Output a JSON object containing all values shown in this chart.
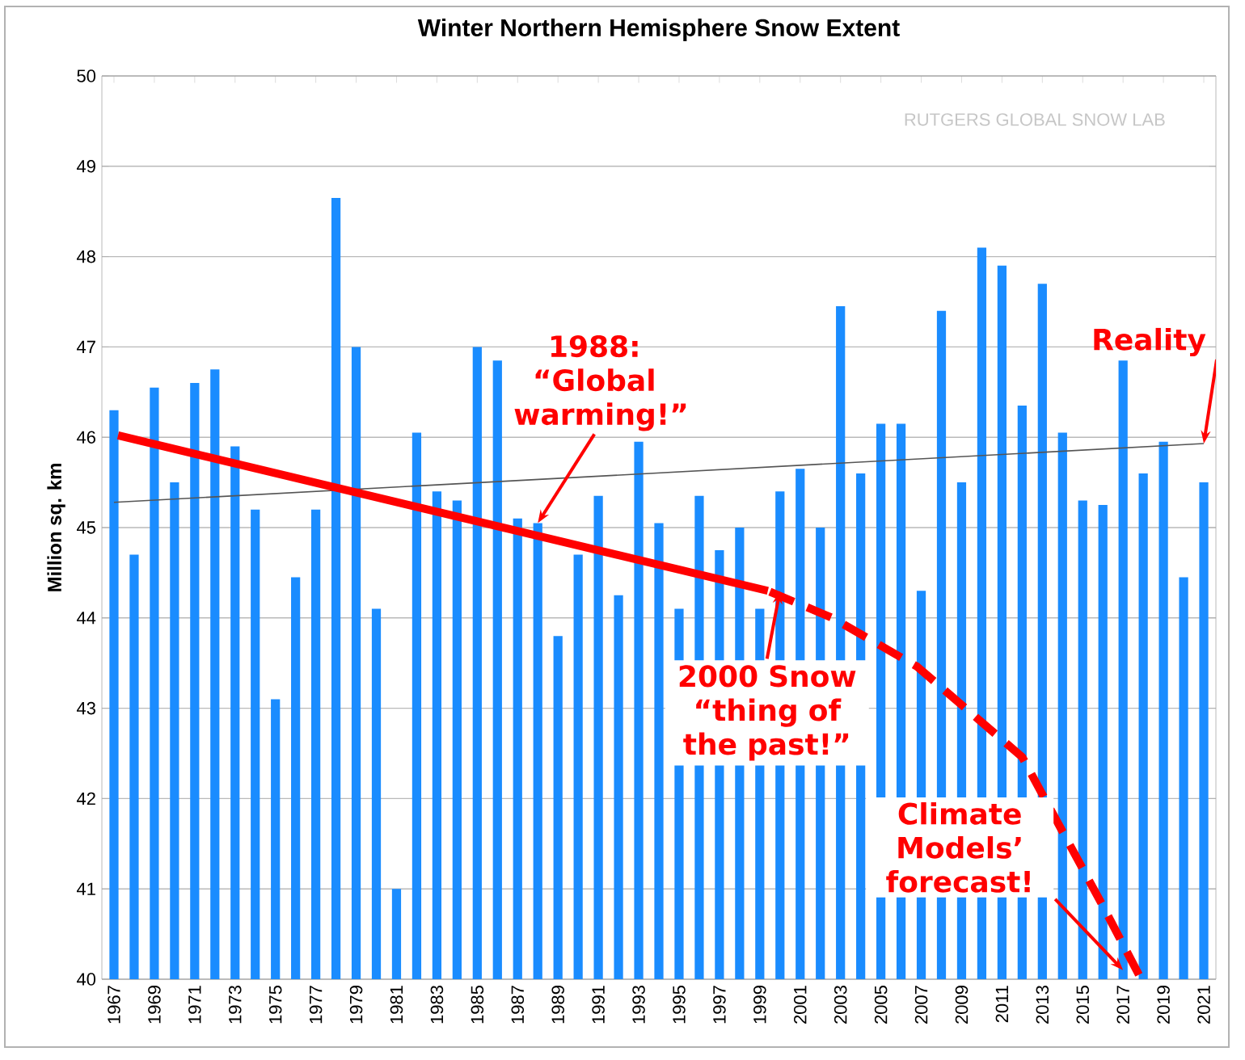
{
  "chart_data": {
    "type": "bar",
    "title": "Winter Northern Hemisphere Snow Extent",
    "ylabel": "Million sq. km",
    "x": [
      1967,
      1968,
      1969,
      1970,
      1971,
      1972,
      1973,
      1974,
      1975,
      1976,
      1977,
      1978,
      1979,
      1980,
      1981,
      1982,
      1983,
      1984,
      1985,
      1986,
      1987,
      1988,
      1989,
      1990,
      1991,
      1992,
      1993,
      1994,
      1995,
      1996,
      1997,
      1998,
      1999,
      2000,
      2001,
      2002,
      2003,
      2004,
      2005,
      2006,
      2007,
      2008,
      2009,
      2010,
      2011,
      2012,
      2013,
      2014,
      2015,
      2016,
      2017,
      2018,
      2019,
      2020,
      2021
    ],
    "series": [
      {
        "color": "#1a8cff",
        "values": [
          46.3,
          44.7,
          46.55,
          45.5,
          46.6,
          46.75,
          45.9,
          45.2,
          43.1,
          44.45,
          45.2,
          48.65,
          47.0,
          44.1,
          41.0,
          46.05,
          45.4,
          45.3,
          47.0,
          46.85,
          45.1,
          45.05,
          43.8,
          44.7,
          45.35,
          44.25,
          45.95,
          45.05,
          44.1,
          45.35,
          44.75,
          45.0,
          44.1,
          45.4,
          45.65,
          45.0,
          47.45,
          45.6,
          46.15,
          46.15,
          44.3,
          47.4,
          45.5,
          48.1,
          47.9,
          46.35,
          47.7,
          46.05,
          45.3,
          45.25,
          46.85,
          45.6,
          45.95,
          44.45,
          45.5
        ]
      },
      {
        "type": "line",
        "color": "#555555",
        "x": [
          1967,
          2021
        ],
        "values": [
          45.28,
          45.93
        ]
      },
      {
        "type": "line",
        "color": "#ff0000",
        "x": [
          1967.2,
          1999.4
        ],
        "values": [
          46.02,
          44.3
        ]
      },
      {
        "type": "line",
        "color": "#ff0000",
        "line_style": "dashed",
        "x": [
          1999.5,
          2002.6,
          2006.8,
          2012.0,
          2016.0,
          2017.9
        ],
        "values": [
          44.29,
          44.0,
          43.46,
          42.46,
          40.81,
          40.0
        ]
      }
    ],
    "xlim": [
      1966.4,
      2021.6
    ],
    "xticks": [
      1967,
      1969,
      1971,
      1973,
      1975,
      1977,
      1979,
      1981,
      1983,
      1985,
      1987,
      1989,
      1991,
      1993,
      1995,
      1997,
      1999,
      2001,
      2003,
      2005,
      2007,
      2009,
      2011,
      2013,
      2015,
      2017,
      2019,
      2021
    ],
    "ylim": [
      40,
      50
    ],
    "yticks": [
      40,
      41,
      42,
      43,
      44,
      45,
      46,
      47,
      48,
      49,
      50
    ],
    "grid": "y",
    "annotations": [
      "RUTGERS GLOBAL SNOW LAB",
      {
        "text": "1988: “Global warming!”",
        "x": 1988,
        "y": 45.05
      },
      {
        "text": "2000 Snow “thing of the past!”",
        "x": 2000,
        "y": 44.3
      },
      {
        "text": "Climate Models’ forecast!",
        "x": 2017,
        "y": 40.1
      },
      {
        "text": "Reality",
        "x": 2021,
        "y": 45.93
      }
    ]
  }
}
